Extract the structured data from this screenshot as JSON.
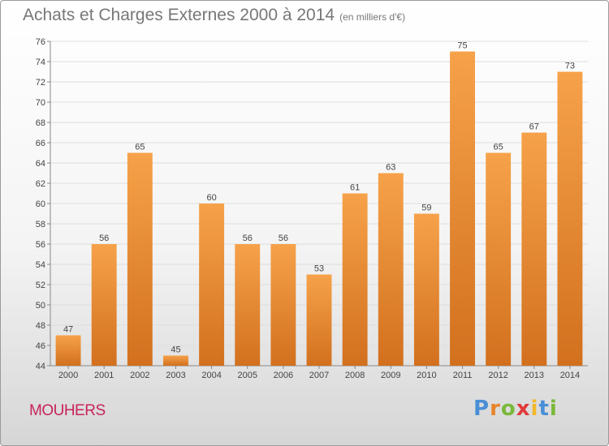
{
  "title": "Achats et Charges Externes 2000 à 2014",
  "subtitle": "(en milliers d'€)",
  "place": "MOUHERS",
  "logo": {
    "letters": [
      "P",
      "r",
      "o",
      "x",
      "i",
      "t",
      "i"
    ],
    "colors": [
      "#4a8fd6",
      "#e8842a",
      "#7ab83a",
      "#e23a3a",
      "#f2b72b",
      "#4a8fd6",
      "#7ab83a"
    ]
  },
  "colors": {
    "bar_top": "#f6a24a",
    "bar_bottom": "#d2701e",
    "grid": "#dddddd",
    "axis": "#888888"
  },
  "chart_data": {
    "type": "bar",
    "categories": [
      "2000",
      "2001",
      "2002",
      "2003",
      "2004",
      "2005",
      "2006",
      "2007",
      "2008",
      "2009",
      "2010",
      "2011",
      "2012",
      "2013",
      "2014"
    ],
    "values": [
      47,
      56,
      65,
      45,
      60,
      56,
      56,
      53,
      61,
      63,
      59,
      75,
      65,
      67,
      73
    ],
    "ylim": [
      44,
      76
    ],
    "yticks": [
      44,
      46,
      48,
      50,
      52,
      54,
      56,
      58,
      60,
      62,
      64,
      66,
      68,
      70,
      72,
      74,
      76
    ],
    "grid": true,
    "data_labels": true
  }
}
